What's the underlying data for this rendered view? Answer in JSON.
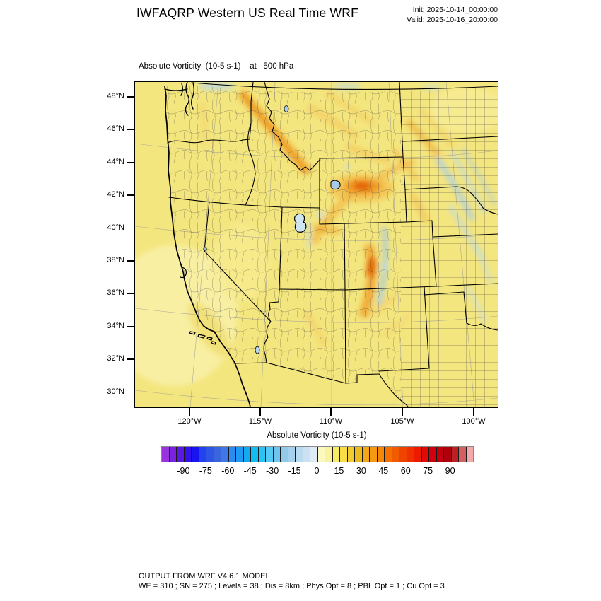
{
  "header": {
    "title": "IWFAQRP Western US Real Time WRF",
    "init_line": "Init: 2025-10-14_00:00:00",
    "valid_line": "Valid: 2025-10-16_20:00:00"
  },
  "map": {
    "subtitle": "Absolute Vorticity  (10-5 s-1)    at   500 hPa",
    "lat_labels": [
      "48°N",
      "46°N",
      "44°N",
      "42°N",
      "40°N",
      "38°N",
      "36°N",
      "34°N",
      "32°N",
      "30°N"
    ],
    "lon_labels": [
      "120°W",
      "115°W",
      "110°W",
      "105°W",
      "100°W"
    ]
  },
  "colorbar": {
    "title": "Absolute Vorticity  (10-5 s-1)",
    "tick_labels": [
      "-90",
      "-75",
      "-60",
      "-45",
      "-30",
      "-15",
      "0",
      "15",
      "30",
      "45",
      "60",
      "75",
      "90"
    ],
    "cell_colors": [
      "#9933dd",
      "#7a22e0",
      "#5a18e6",
      "#3311ee",
      "#1813f0",
      "#2142ec",
      "#2e55e4",
      "#3a66dd",
      "#3e78e8",
      "#2a8cf2",
      "#1e9af5",
      "#14aaf2",
      "#10bcf2",
      "#28c4f5",
      "#55caf2",
      "#6ec6f0",
      "#92caea",
      "#a6d2f0",
      "#badaf0",
      "#cce2f2",
      "#dcebf5",
      "#fbf8c0",
      "#faf29e",
      "#f8ec62",
      "#f8de44",
      "#f2cc30",
      "#ecbb20",
      "#f2a81a",
      "#f59912",
      "#f58806",
      "#f57000",
      "#f25a00",
      "#ee4400",
      "#f03000",
      "#ee1a00",
      "#e20a04",
      "#d2000c",
      "#c2000e",
      "#b0000e",
      "#bc2020",
      "#d26060",
      "#f2aaaa"
    ]
  },
  "field_colors": {
    "background": "#f4e67e",
    "light_patch": "#f8f0a6",
    "positive_moderate": "#f0a030",
    "positive_strong": "#e05500",
    "negative_band": "#a9cde9"
  },
  "footer": {
    "line1": "OUTPUT FROM WRF V4.6.1 MODEL",
    "line2": "WE = 310 ; SN = 275 ; Levels = 38 ; Dis = 8km ; Phys Opt = 8 ; PBL Opt = 1 ; Cu Opt = 3"
  }
}
